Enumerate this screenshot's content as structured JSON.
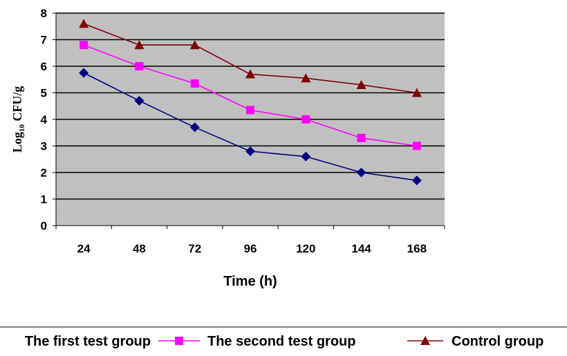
{
  "chart_data": {
    "type": "line",
    "xlabel": "Time (h)",
    "ylabel": "Log10 CFU/g",
    "ylabel_main": "Log",
    "ylabel_sub": "10",
    "ylabel_rest": " CFU/g",
    "categories": [
      "24",
      "48",
      "72",
      "96",
      "120",
      "144",
      "168"
    ],
    "ylim": [
      0,
      8
    ],
    "yticks": [
      "0",
      "1",
      "2",
      "3",
      "4",
      "5",
      "6",
      "7",
      "8"
    ],
    "grid": true,
    "plot_background": "#c0c0c0",
    "legend_position": "bottom",
    "series": [
      {
        "name": "The first test group",
        "color": "#000080",
        "marker": "diamond",
        "values": [
          5.75,
          4.7,
          3.7,
          2.8,
          2.6,
          2.0,
          1.7
        ]
      },
      {
        "name": "The second test group",
        "color": "#ff00ff",
        "marker": "square",
        "values": [
          6.8,
          6.0,
          5.35,
          4.35,
          4.0,
          3.3,
          3.0
        ]
      },
      {
        "name": "Control group",
        "color": "#800000",
        "marker": "triangle",
        "values": [
          7.6,
          6.8,
          6.8,
          5.7,
          5.55,
          5.3,
          5.0
        ]
      }
    ]
  }
}
